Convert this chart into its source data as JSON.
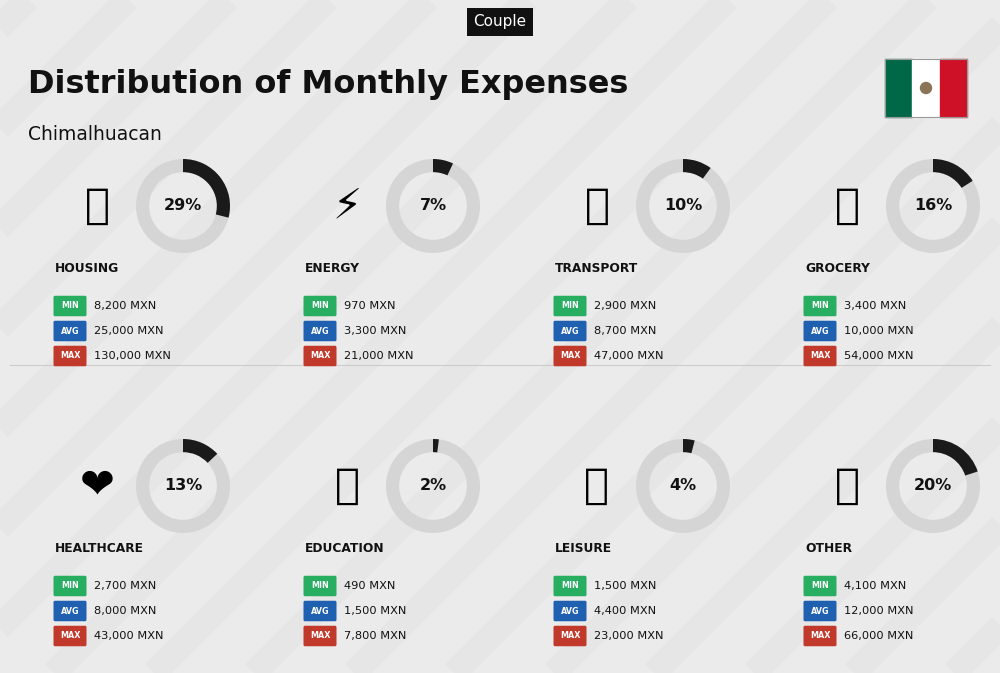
{
  "title": "Distribution of Monthly Expenses",
  "subtitle": "Chimalhuacan",
  "tag": "Couple",
  "bg_color": "#ebebeb",
  "categories": [
    {
      "name": "HOUSING",
      "pct": 29,
      "min": "8,200 MXN",
      "avg": "25,000 MXN",
      "max": "130,000 MXN",
      "col": 0,
      "row": 0
    },
    {
      "name": "ENERGY",
      "pct": 7,
      "min": "970 MXN",
      "avg": "3,300 MXN",
      "max": "21,000 MXN",
      "col": 1,
      "row": 0
    },
    {
      "name": "TRANSPORT",
      "pct": 10,
      "min": "2,900 MXN",
      "avg": "8,700 MXN",
      "max": "47,000 MXN",
      "col": 2,
      "row": 0
    },
    {
      "name": "GROCERY",
      "pct": 16,
      "min": "3,400 MXN",
      "avg": "10,000 MXN",
      "max": "54,000 MXN",
      "col": 3,
      "row": 0
    },
    {
      "name": "HEALTHCARE",
      "pct": 13,
      "min": "2,700 MXN",
      "avg": "8,000 MXN",
      "max": "43,000 MXN",
      "col": 0,
      "row": 1
    },
    {
      "name": "EDUCATION",
      "pct": 2,
      "min": "490 MXN",
      "avg": "1,500 MXN",
      "max": "7,800 MXN",
      "col": 1,
      "row": 1
    },
    {
      "name": "LEISURE",
      "pct": 4,
      "min": "1,500 MXN",
      "avg": "4,400 MXN",
      "max": "23,000 MXN",
      "col": 2,
      "row": 1
    },
    {
      "name": "OTHER",
      "pct": 20,
      "min": "4,100 MXN",
      "avg": "12,000 MXN",
      "max": "66,000 MXN",
      "col": 3,
      "row": 1
    }
  ],
  "min_color": "#27ae60",
  "avg_color": "#2060b0",
  "max_color": "#c0392b",
  "circle_bg": "#d5d5d5",
  "arc_color": "#1a1a1a",
  "tag_bg": "#111111",
  "tag_color": "#ffffff",
  "stripe_color": "#e0e0e0",
  "text_color": "#111111",
  "flag_green": "#006847",
  "flag_white": "#ffffff",
  "flag_red": "#ce1126"
}
